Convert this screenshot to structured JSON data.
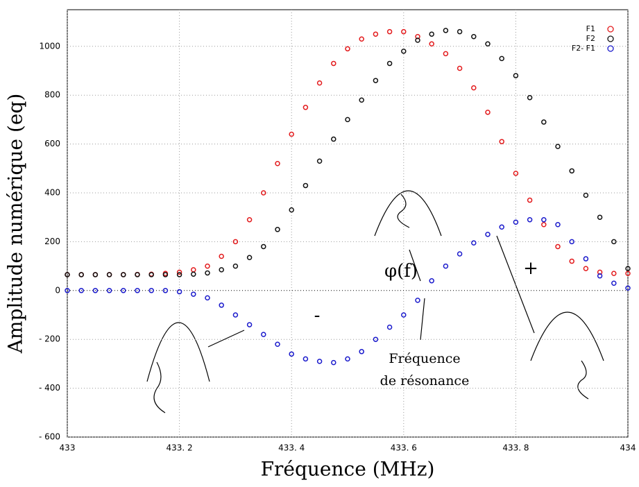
{
  "chart_data": {
    "type": "scatter",
    "xlabel": "Fréquence (MHz)",
    "ylabel": "Amplitude numérique (eq)",
    "x": [
      433,
      433.025,
      433.05,
      433.075,
      433.1,
      433.125,
      433.15,
      433.175,
      433.2,
      433.225,
      433.25,
      433.275,
      433.3,
      433.325,
      433.35,
      433.375,
      433.4,
      433.425,
      433.45,
      433.475,
      433.5,
      433.525,
      433.55,
      433.575,
      433.6,
      433.625,
      433.65,
      433.675,
      433.7,
      433.725,
      433.75,
      433.775,
      433.8,
      433.825,
      433.85,
      433.875,
      433.9,
      433.925,
      433.95,
      433.975,
      434
    ],
    "series": [
      {
        "name": "F1",
        "color": "#e31a1c",
        "values": [
          65,
          65,
          65,
          65,
          65,
          66,
          67,
          70,
          75,
          85,
          100,
          140,
          200,
          290,
          400,
          520,
          640,
          750,
          850,
          930,
          990,
          1030,
          1050,
          1060,
          1060,
          1040,
          1010,
          970,
          910,
          830,
          730,
          610,
          480,
          370,
          270,
          180,
          120,
          90,
          75,
          70,
          70
        ]
      },
      {
        "name": "F2",
        "color": "#111111",
        "values": [
          65,
          65,
          65,
          65,
          65,
          65,
          65,
          65,
          65,
          67,
          72,
          85,
          100,
          135,
          180,
          250,
          330,
          430,
          530,
          620,
          700,
          780,
          860,
          930,
          980,
          1025,
          1050,
          1065,
          1060,
          1040,
          1010,
          950,
          880,
          790,
          690,
          590,
          490,
          390,
          300,
          200,
          90
        ]
      },
      {
        "name": "F2- F1",
        "color": "#1a1acc",
        "values": [
          0,
          0,
          0,
          0,
          0,
          0,
          0,
          0,
          -5,
          -15,
          -30,
          -60,
          -100,
          -140,
          -180,
          -220,
          -260,
          -280,
          -290,
          -295,
          -280,
          -250,
          -200,
          -150,
          -100,
          -40,
          40,
          100,
          150,
          195,
          230,
          260,
          280,
          290,
          290,
          270,
          200,
          130,
          60,
          30,
          10
        ]
      }
    ],
    "xlim": [
      433,
      434
    ],
    "xticks": [
      433,
      {
        "value": 433.2,
        "label": "433. 2"
      },
      {
        "value": 433.4,
        "label": "433. 4"
      },
      {
        "value": 433.6,
        "label": "433. 6"
      },
      {
        "value": 433.8,
        "label": "433. 8"
      },
      434
    ],
    "ylim": [
      -600,
      1150
    ],
    "yticks": [
      {
        "value": -600,
        "label": "- 600"
      },
      {
        "value": -400,
        "label": "- 400"
      },
      {
        "value": -200,
        "label": "- 200"
      },
      0,
      200,
      400,
      600,
      800,
      1000
    ],
    "grid": true,
    "legend": "top-right",
    "annotations": [
      "φ(f)",
      "+",
      "-",
      "Fréquence",
      "de résonance"
    ]
  }
}
